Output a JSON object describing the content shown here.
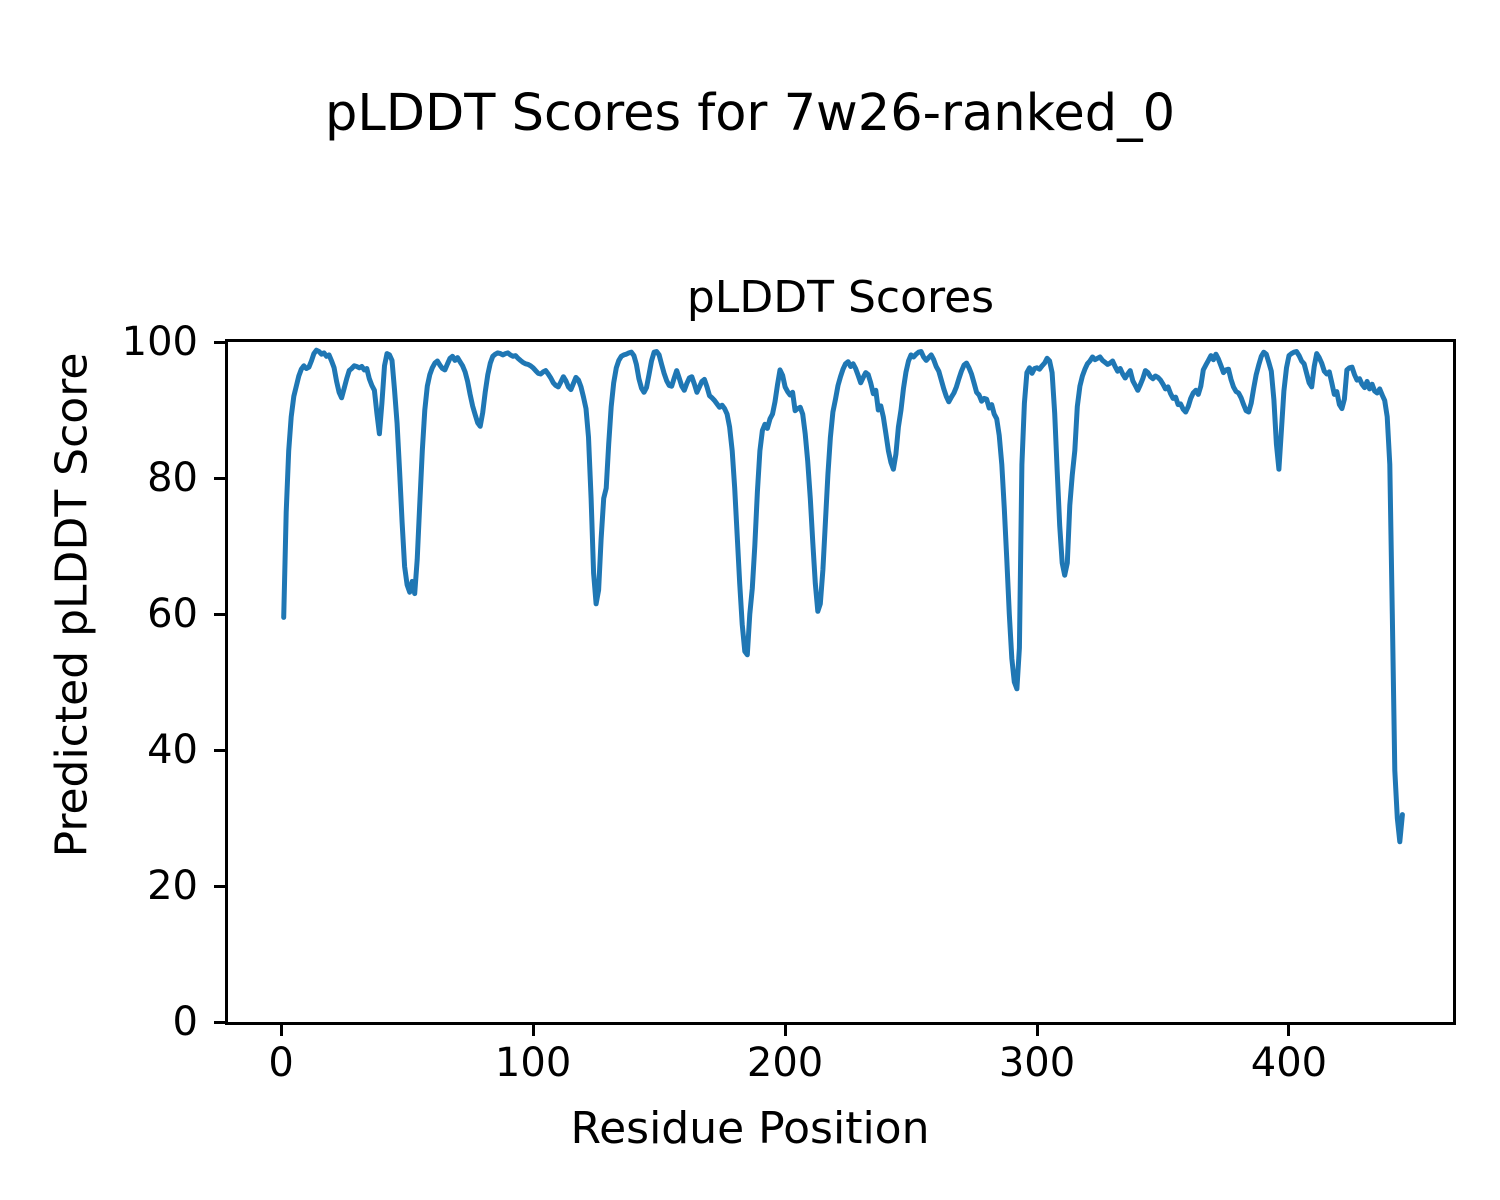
{
  "figure": {
    "suptitle": "pLDDT Scores for 7w26-ranked_0",
    "background": "#ffffff"
  },
  "chart_data": {
    "type": "line",
    "title": "pLDDT Scores",
    "xlabel": "Residue Position",
    "ylabel": "Predicted pLDDT Score",
    "series_name": "pLDDT",
    "xlim": [
      -21.1,
      465.1
    ],
    "ylim": [
      0,
      100
    ],
    "xticks": [
      0,
      100,
      200,
      300,
      400
    ],
    "yticks": [
      0,
      20,
      40,
      60,
      80,
      100
    ],
    "grid": false,
    "legend": null,
    "line_color": "#1f77b4",
    "line_width": 5,
    "points": [
      [
        1,
        59.5
      ],
      [
        2,
        75
      ],
      [
        3,
        84
      ],
      [
        4,
        89
      ],
      [
        5,
        92
      ],
      [
        6,
        93.5
      ],
      [
        7,
        95
      ],
      [
        8,
        96
      ],
      [
        9,
        96.5
      ],
      [
        10,
        96.1
      ],
      [
        11,
        96.3
      ],
      [
        12,
        97.2
      ],
      [
        13,
        98.3
      ],
      [
        14,
        98.8
      ],
      [
        15,
        98.6
      ],
      [
        16,
        98.2
      ],
      [
        17,
        98.4
      ],
      [
        18,
        97.9
      ],
      [
        19,
        98.1
      ],
      [
        20,
        97.2
      ],
      [
        21,
        96.2
      ],
      [
        22,
        94.2
      ],
      [
        23,
        92.6
      ],
      [
        24,
        91.8
      ],
      [
        25,
        93.2
      ],
      [
        26,
        94.6
      ],
      [
        27,
        95.8
      ],
      [
        28,
        96.1
      ],
      [
        29,
        96.5
      ],
      [
        30,
        96.4
      ],
      [
        31,
        96.2
      ],
      [
        32,
        96.4
      ],
      [
        33,
        95.9
      ],
      [
        34,
        96.1
      ],
      [
        35,
        94.6
      ],
      [
        36,
        93.6
      ],
      [
        37,
        92.9
      ],
      [
        38,
        89.5
      ],
      [
        39,
        86.5
      ],
      [
        40,
        91
      ],
      [
        41,
        96.5
      ],
      [
        42,
        98.3
      ],
      [
        43,
        98.1
      ],
      [
        44,
        97.3
      ],
      [
        45,
        93
      ],
      [
        46,
        88
      ],
      [
        47,
        81
      ],
      [
        48,
        73.5
      ],
      [
        49,
        67
      ],
      [
        50,
        64.3
      ],
      [
        51,
        63.2
      ],
      [
        52,
        64.8
      ],
      [
        53,
        63
      ],
      [
        54,
        68
      ],
      [
        55,
        76
      ],
      [
        56,
        84
      ],
      [
        57,
        90
      ],
      [
        58,
        93.5
      ],
      [
        59,
        95.2
      ],
      [
        60,
        96.2
      ],
      [
        61,
        96.9
      ],
      [
        62,
        97.2
      ],
      [
        63,
        96.6
      ],
      [
        64,
        96.1
      ],
      [
        65,
        95.9
      ],
      [
        66,
        96.8
      ],
      [
        67,
        97.6
      ],
      [
        68,
        97.9
      ],
      [
        69,
        97.3
      ],
      [
        70,
        97.7
      ],
      [
        71,
        97.1
      ],
      [
        72,
        96.5
      ],
      [
        73,
        95.6
      ],
      [
        74,
        94.2
      ],
      [
        75,
        92.3
      ],
      [
        76,
        90.6
      ],
      [
        77,
        89.3
      ],
      [
        78,
        88.1
      ],
      [
        79,
        87.6
      ],
      [
        80,
        89.6
      ],
      [
        81,
        92.6
      ],
      [
        82,
        95.2
      ],
      [
        83,
        96.9
      ],
      [
        84,
        97.9
      ],
      [
        85,
        98.2
      ],
      [
        86,
        98.4
      ],
      [
        87,
        98.3
      ],
      [
        88,
        98.1
      ],
      [
        89,
        98.3
      ],
      [
        90,
        98.4
      ],
      [
        91,
        98.1
      ],
      [
        92,
        97.9
      ],
      [
        93,
        98
      ],
      [
        94,
        97.6
      ],
      [
        95,
        97.3
      ],
      [
        96,
        97
      ],
      [
        97,
        96.8
      ],
      [
        98,
        96.7
      ],
      [
        99,
        96.5
      ],
      [
        100,
        96.2
      ],
      [
        101,
        95.8
      ],
      [
        102,
        95.4
      ],
      [
        103,
        95.3
      ],
      [
        104,
        95.6
      ],
      [
        105,
        95.8
      ],
      [
        106,
        95.3
      ],
      [
        107,
        94.7
      ],
      [
        108,
        94
      ],
      [
        109,
        93.6
      ],
      [
        110,
        93.4
      ],
      [
        111,
        94.1
      ],
      [
        112,
        94.9
      ],
      [
        113,
        94.3
      ],
      [
        114,
        93.4
      ],
      [
        115,
        93
      ],
      [
        116,
        93.9
      ],
      [
        117,
        94.8
      ],
      [
        118,
        94.4
      ],
      [
        119,
        93.4
      ],
      [
        120,
        91.9
      ],
      [
        121,
        90.2
      ],
      [
        122,
        86
      ],
      [
        123,
        77
      ],
      [
        124,
        66
      ],
      [
        125,
        61.5
      ],
      [
        126,
        63.5
      ],
      [
        127,
        71
      ],
      [
        128,
        77
      ],
      [
        129,
        78.5
      ],
      [
        130,
        85
      ],
      [
        131,
        90.5
      ],
      [
        132,
        94
      ],
      [
        133,
        96.2
      ],
      [
        134,
        97.3
      ],
      [
        135,
        97.9
      ],
      [
        136,
        98.1
      ],
      [
        137,
        98.2
      ],
      [
        138,
        98.4
      ],
      [
        139,
        98.5
      ],
      [
        140,
        98
      ],
      [
        141,
        96.7
      ],
      [
        142,
        94.6
      ],
      [
        143,
        93.2
      ],
      [
        144,
        92.6
      ],
      [
        145,
        93.3
      ],
      [
        146,
        95.2
      ],
      [
        147,
        97.2
      ],
      [
        148,
        98.5
      ],
      [
        149,
        98.6
      ],
      [
        150,
        98.1
      ],
      [
        151,
        96.7
      ],
      [
        152,
        95.4
      ],
      [
        153,
        94.3
      ],
      [
        154,
        93.6
      ],
      [
        155,
        93.5
      ],
      [
        156,
        94.7
      ],
      [
        157,
        95.8
      ],
      [
        158,
        94.7
      ],
      [
        159,
        93.5
      ],
      [
        160,
        92.9
      ],
      [
        161,
        93.9
      ],
      [
        162,
        94.7
      ],
      [
        163,
        94.9
      ],
      [
        164,
        93.8
      ],
      [
        165,
        92.6
      ],
      [
        166,
        93.4
      ],
      [
        167,
        94.2
      ],
      [
        168,
        94.5
      ],
      [
        169,
        93.4
      ],
      [
        170,
        92.1
      ],
      [
        171,
        91.8
      ],
      [
        172,
        91.4
      ],
      [
        173,
        90.9
      ],
      [
        174,
        90.4
      ],
      [
        175,
        90.7
      ],
      [
        176,
        90.2
      ],
      [
        177,
        89.4
      ],
      [
        178,
        87.5
      ],
      [
        179,
        84
      ],
      [
        180,
        78.5
      ],
      [
        181,
        71.5
      ],
      [
        182,
        64.5
      ],
      [
        183,
        58.5
      ],
      [
        184,
        54.5
      ],
      [
        185,
        54
      ],
      [
        186,
        60
      ],
      [
        187,
        63.8
      ],
      [
        188,
        70
      ],
      [
        189,
        78
      ],
      [
        190,
        84
      ],
      [
        191,
        87
      ],
      [
        192,
        87.9
      ],
      [
        193,
        87.3
      ],
      [
        194,
        88.7
      ],
      [
        195,
        89.4
      ],
      [
        196,
        91.2
      ],
      [
        197,
        93.7
      ],
      [
        198,
        95.9
      ],
      [
        199,
        95.1
      ],
      [
        200,
        93.4
      ],
      [
        201,
        92.7
      ],
      [
        202,
        92.2
      ],
      [
        203,
        92.6
      ],
      [
        204,
        89.9
      ],
      [
        205,
        90.2
      ],
      [
        206,
        90.4
      ],
      [
        207,
        89.4
      ],
      [
        208,
        86.5
      ],
      [
        209,
        82.5
      ],
      [
        210,
        77
      ],
      [
        211,
        70.5
      ],
      [
        212,
        64.5
      ],
      [
        213,
        60.4
      ],
      [
        214,
        61.5
      ],
      [
        215,
        66.5
      ],
      [
        216,
        73.5
      ],
      [
        217,
        80.5
      ],
      [
        218,
        86
      ],
      [
        219,
        89.7
      ],
      [
        220,
        91.6
      ],
      [
        221,
        93.6
      ],
      [
        222,
        94.9
      ],
      [
        223,
        96
      ],
      [
        224,
        96.8
      ],
      [
        225,
        97.1
      ],
      [
        226,
        96.4
      ],
      [
        227,
        96.8
      ],
      [
        228,
        96.1
      ],
      [
        229,
        95.1
      ],
      [
        230,
        94
      ],
      [
        231,
        94.8
      ],
      [
        232,
        95.5
      ],
      [
        233,
        95.2
      ],
      [
        234,
        94
      ],
      [
        235,
        92.4
      ],
      [
        236,
        92.9
      ],
      [
        237,
        90
      ],
      [
        238,
        90.6
      ],
      [
        239,
        89
      ],
      [
        240,
        86.5
      ],
      [
        241,
        84
      ],
      [
        242,
        82.3
      ],
      [
        243,
        81.3
      ],
      [
        244,
        83.5
      ],
      [
        245,
        87.5
      ],
      [
        246,
        90
      ],
      [
        247,
        93.2
      ],
      [
        248,
        95.6
      ],
      [
        249,
        97.2
      ],
      [
        250,
        98.1
      ],
      [
        251,
        97.8
      ],
      [
        252,
        98.2
      ],
      [
        253,
        98.5
      ],
      [
        254,
        98.6
      ],
      [
        255,
        97.8
      ],
      [
        256,
        97.3
      ],
      [
        257,
        97.7
      ],
      [
        258,
        98.1
      ],
      [
        259,
        97.4
      ],
      [
        260,
        96.4
      ],
      [
        261,
        95.7
      ],
      [
        262,
        94.4
      ],
      [
        263,
        93.1
      ],
      [
        264,
        92
      ],
      [
        265,
        91.2
      ],
      [
        266,
        91.9
      ],
      [
        267,
        92.5
      ],
      [
        268,
        93.4
      ],
      [
        269,
        94.6
      ],
      [
        270,
        95.7
      ],
      [
        271,
        96.6
      ],
      [
        272,
        96.9
      ],
      [
        273,
        96.2
      ],
      [
        274,
        95.3
      ],
      [
        275,
        94
      ],
      [
        276,
        92.6
      ],
      [
        277,
        92.2
      ],
      [
        278,
        91.3
      ],
      [
        279,
        91.7
      ],
      [
        280,
        91.6
      ],
      [
        281,
        90.3
      ],
      [
        282,
        90.8
      ],
      [
        283,
        89.4
      ],
      [
        284,
        88.7
      ],
      [
        285,
        86.3
      ],
      [
        286,
        82
      ],
      [
        287,
        75.5
      ],
      [
        288,
        68
      ],
      [
        289,
        60
      ],
      [
        290,
        53.5
      ],
      [
        291,
        50
      ],
      [
        292,
        49
      ],
      [
        293,
        55
      ],
      [
        294,
        82
      ],
      [
        295,
        91
      ],
      [
        296,
        95.5
      ],
      [
        297,
        96.2
      ],
      [
        298,
        95.4
      ],
      [
        299,
        96.1
      ],
      [
        300,
        96.2
      ],
      [
        301,
        96
      ],
      [
        302,
        96.5
      ],
      [
        303,
        96.9
      ],
      [
        304,
        97.6
      ],
      [
        305,
        97.2
      ],
      [
        306,
        95.5
      ],
      [
        307,
        89.5
      ],
      [
        308,
        81
      ],
      [
        309,
        73
      ],
      [
        310,
        67.5
      ],
      [
        311,
        65.7
      ],
      [
        312,
        67.5
      ],
      [
        313,
        76
      ],
      [
        314,
        80.5
      ],
      [
        315,
        84
      ],
      [
        316,
        90.5
      ],
      [
        317,
        93.5
      ],
      [
        318,
        95
      ],
      [
        319,
        96
      ],
      [
        320,
        96.8
      ],
      [
        321,
        97.2
      ],
      [
        322,
        97.8
      ],
      [
        323,
        97.4
      ],
      [
        324,
        97.6
      ],
      [
        325,
        97.8
      ],
      [
        326,
        97.3
      ],
      [
        327,
        97
      ],
      [
        328,
        96.7
      ],
      [
        329,
        96.9
      ],
      [
        330,
        97.2
      ],
      [
        331,
        96.4
      ],
      [
        332,
        95.7
      ],
      [
        333,
        96.1
      ],
      [
        334,
        95.3
      ],
      [
        335,
        94.7
      ],
      [
        336,
        95.3
      ],
      [
        337,
        95.8
      ],
      [
        338,
        94.3
      ],
      [
        339,
        93.6
      ],
      [
        340,
        92.9
      ],
      [
        341,
        93.7
      ],
      [
        342,
        94.6
      ],
      [
        343,
        95.8
      ],
      [
        344,
        95.5
      ],
      [
        345,
        94.9
      ],
      [
        346,
        94.6
      ],
      [
        347,
        95
      ],
      [
        348,
        94.8
      ],
      [
        349,
        94.4
      ],
      [
        350,
        93.8
      ],
      [
        351,
        93.1
      ],
      [
        352,
        93.4
      ],
      [
        353,
        92.4
      ],
      [
        354,
        91.7
      ],
      [
        355,
        91.9
      ],
      [
        356,
        90.8
      ],
      [
        357,
        90.9
      ],
      [
        358,
        90.1
      ],
      [
        359,
        89.7
      ],
      [
        360,
        90.5
      ],
      [
        361,
        91.7
      ],
      [
        362,
        92.5
      ],
      [
        363,
        92.9
      ],
      [
        364,
        92.3
      ],
      [
        365,
        93.5
      ],
      [
        366,
        95.9
      ],
      [
        367,
        96.6
      ],
      [
        368,
        97.3
      ],
      [
        369,
        98
      ],
      [
        370,
        97.4
      ],
      [
        371,
        98.2
      ],
      [
        372,
        97.5
      ],
      [
        373,
        96.5
      ],
      [
        374,
        95.5
      ],
      [
        375,
        95.9
      ],
      [
        376,
        96
      ],
      [
        377,
        94.5
      ],
      [
        378,
        93.4
      ],
      [
        379,
        92.7
      ],
      [
        380,
        92.5
      ],
      [
        381,
        91.8
      ],
      [
        382,
        90.8
      ],
      [
        383,
        89.9
      ],
      [
        384,
        89.7
      ],
      [
        385,
        91
      ],
      [
        386,
        93.2
      ],
      [
        387,
        95.2
      ],
      [
        388,
        96.6
      ],
      [
        389,
        97.9
      ],
      [
        390,
        98.5
      ],
      [
        391,
        98.2
      ],
      [
        392,
        97
      ],
      [
        393,
        95.7
      ],
      [
        394,
        91.5
      ],
      [
        395,
        85
      ],
      [
        396,
        81.3
      ],
      [
        397,
        87
      ],
      [
        398,
        92.8
      ],
      [
        399,
        96.2
      ],
      [
        400,
        98
      ],
      [
        401,
        98.3
      ],
      [
        402,
        98.5
      ],
      [
        403,
        98.6
      ],
      [
        404,
        98
      ],
      [
        405,
        97.2
      ],
      [
        406,
        96.8
      ],
      [
        407,
        95.4
      ],
      [
        408,
        94
      ],
      [
        409,
        93.4
      ],
      [
        410,
        96.4
      ],
      [
        411,
        98.3
      ],
      [
        412,
        97.7
      ],
      [
        413,
        96.9
      ],
      [
        414,
        95.7
      ],
      [
        415,
        95.3
      ],
      [
        416,
        95.6
      ],
      [
        417,
        94
      ],
      [
        418,
        92.3
      ],
      [
        419,
        92.7
      ],
      [
        420,
        90.8
      ],
      [
        421,
        90.2
      ],
      [
        422,
        91.6
      ],
      [
        423,
        95.9
      ],
      [
        424,
        96.2
      ],
      [
        425,
        96.3
      ],
      [
        426,
        95.2
      ],
      [
        427,
        94.4
      ],
      [
        428,
        94.6
      ],
      [
        429,
        93.8
      ],
      [
        430,
        93.3
      ],
      [
        431,
        94.2
      ],
      [
        432,
        93.1
      ],
      [
        433,
        93.8
      ],
      [
        434,
        92.8
      ],
      [
        435,
        92.5
      ],
      [
        436,
        93.1
      ],
      [
        437,
        92.2
      ],
      [
        438,
        91.4
      ],
      [
        439,
        89
      ],
      [
        440,
        82
      ],
      [
        441,
        60
      ],
      [
        442,
        37
      ],
      [
        443,
        30
      ],
      [
        444,
        26.5
      ],
      [
        445,
        30.5
      ]
    ]
  }
}
